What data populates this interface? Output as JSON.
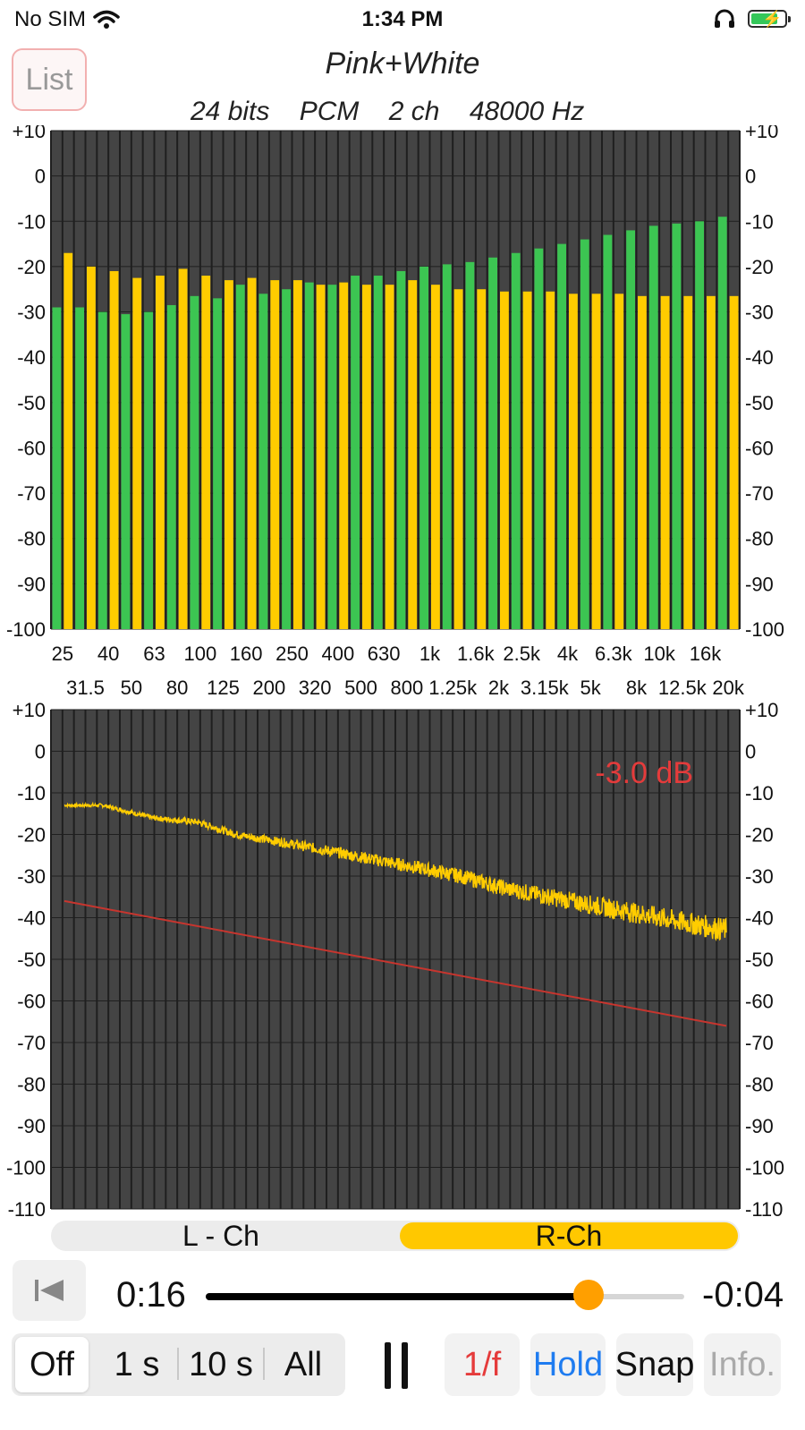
{
  "status_bar": {
    "carrier": "No SIM",
    "time": "1:34 PM",
    "battery_level": 0.8
  },
  "header": {
    "list_button": "List",
    "title": "Pink+White",
    "format": {
      "bits": "24 bits",
      "codec": "PCM",
      "channels": "2 ch",
      "rate": "48000 Hz"
    }
  },
  "colors": {
    "green": "#3cc552",
    "yellow": "#ffcc00",
    "red_line": "#c8352e",
    "chart_bg": "#444444",
    "grid": "#1f1f1f",
    "accent_orange": "#ff9f00",
    "readout_red": "#e53b3b",
    "hold_blue": "#1f7cf0",
    "onef_red": "#e53b3b"
  },
  "chart_data": [
    {
      "type": "bar",
      "categories": [
        "25",
        "31.5",
        "40",
        "50",
        "63",
        "80",
        "100",
        "125",
        "160",
        "200",
        "250",
        "320",
        "400",
        "500",
        "630",
        "800",
        "1k",
        "1.25k",
        "1.6k",
        "2k",
        "2.5k",
        "3.15k",
        "4k",
        "5k",
        "6.3k",
        "8k",
        "10k",
        "12.5k",
        "16k",
        "20k"
      ],
      "tick_labels_top": [
        "25",
        "40",
        "63",
        "100",
        "160",
        "250",
        "400",
        "630",
        "1k",
        "1.6k",
        "2.5k",
        "4k",
        "6.3k",
        "10k",
        "16k"
      ],
      "tick_labels_bottom": [
        "31.5",
        "50",
        "80",
        "125",
        "200",
        "320",
        "500",
        "800",
        "1.25k",
        "2k",
        "3.15k",
        "5k",
        "8k",
        "12.5k",
        "20k"
      ],
      "yticks": [
        "+10",
        "0",
        "-10",
        "-20",
        "-30",
        "-40",
        "-50",
        "-60",
        "-70",
        "-80",
        "-90",
        "-100"
      ],
      "ylim": [
        -100,
        10
      ],
      "series": [
        {
          "values": [
            -29,
            -29,
            -30,
            -30.5,
            -30,
            -28.5,
            -26.5,
            -27,
            -24,
            -26,
            -25,
            -23.5,
            -24,
            -22,
            -22,
            -21,
            -20,
            -19.5,
            -19,
            -18,
            -17,
            -16,
            -15,
            -14,
            -13,
            -12,
            -11,
            -10.5,
            -10,
            -9
          ]
        },
        {
          "values": [
            -17,
            -20,
            -21,
            -22.5,
            -22,
            -20.5,
            -22,
            -23,
            -22.5,
            -23,
            -23,
            -24,
            -23.5,
            -24,
            -24,
            -23,
            -24,
            -25,
            -25,
            -25.5,
            -25.5,
            -25.5,
            -26,
            -26,
            -26,
            -26.5,
            -26.5,
            -26.5,
            -26.5,
            -26.5
          ]
        }
      ],
      "grid": true
    },
    {
      "type": "line",
      "x_log": true,
      "x": [
        20,
        20000
      ],
      "yticks": [
        "+10",
        "0",
        "-10",
        "-20",
        "-30",
        "-40",
        "-50",
        "-60",
        "-70",
        "-80",
        "-90",
        "-100",
        "-110"
      ],
      "ylim": [
        -110,
        10
      ],
      "annotation": "-3.0 dB",
      "series": [
        {
          "points": [
            [
              20,
              -13
            ],
            [
              30,
              -13
            ],
            [
              50,
              -16
            ],
            [
              80,
              -17
            ],
            [
              120,
              -20
            ],
            [
              200,
              -22
            ],
            [
              320,
              -24
            ],
            [
              500,
              -26
            ],
            [
              800,
              -28
            ],
            [
              1250,
              -30
            ],
            [
              2000,
              -33
            ],
            [
              3150,
              -35
            ],
            [
              5000,
              -37
            ],
            [
              8000,
              -39
            ],
            [
              12500,
              -41
            ],
            [
              20000,
              -43
            ]
          ]
        },
        {
          "points": [
            [
              20,
              -36
            ],
            [
              20000,
              -66
            ]
          ]
        }
      ],
      "grid": true
    }
  ],
  "channels": {
    "left": "L - Ch",
    "right": "R-Ch",
    "selected": "right"
  },
  "playback": {
    "elapsed": "0:16",
    "remaining": "-0:04",
    "progress": 0.8
  },
  "hold_modes": [
    "Off",
    "1 s",
    "10 s",
    "All"
  ],
  "hold_selected": "Off",
  "tools": {
    "onef": "1/f",
    "hold": "Hold",
    "snap": "Snap",
    "info": "Info."
  }
}
